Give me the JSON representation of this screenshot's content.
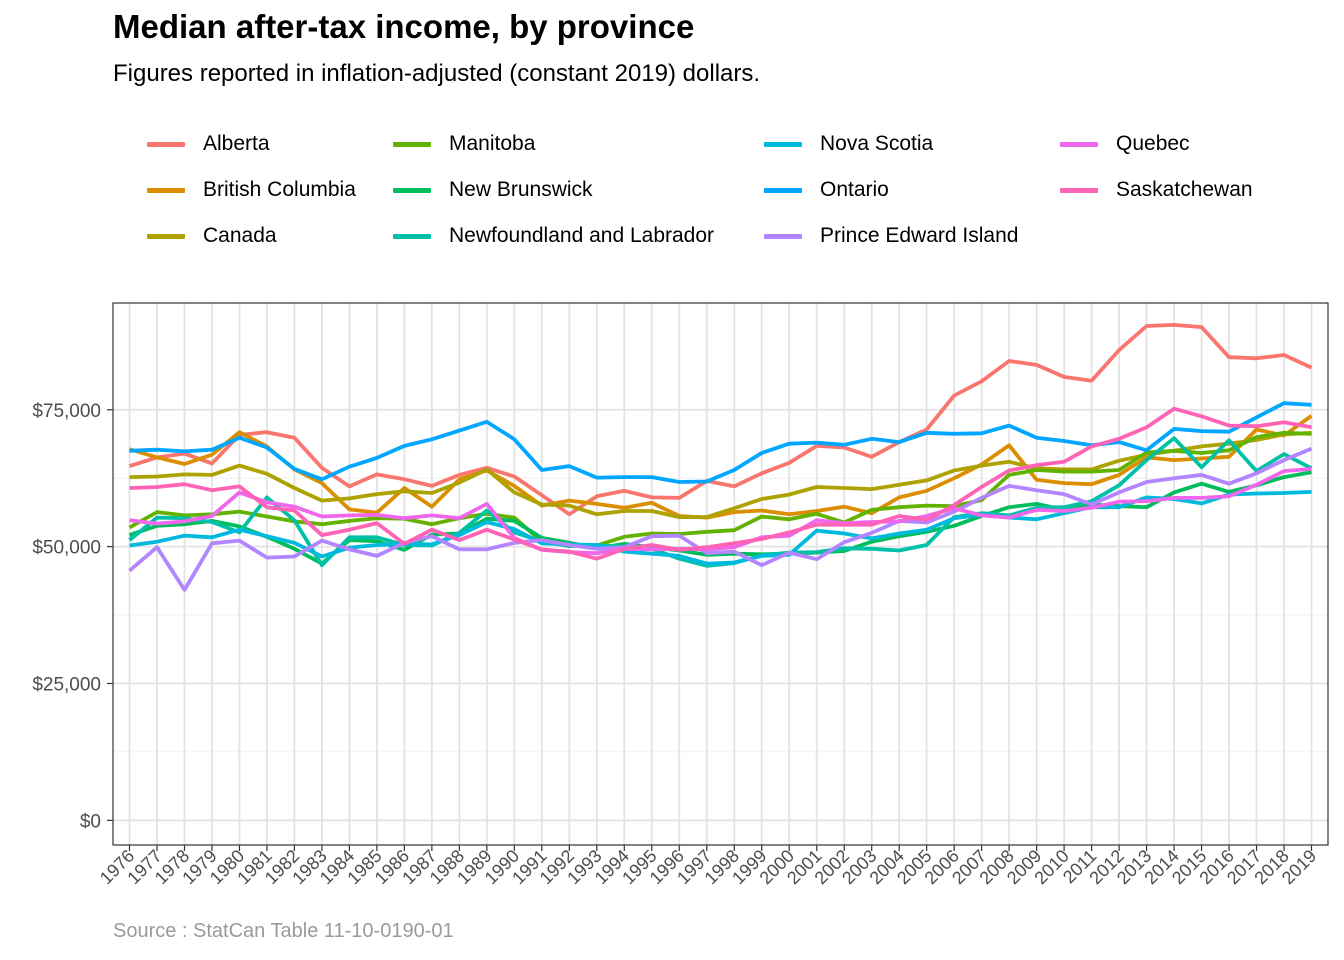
{
  "title": "Median after-tax income, by province",
  "subtitle": "Figures reported in inflation-adjusted (constant 2019) dollars.",
  "caption": "Source : StatCan Table 11-10-0190-01",
  "chart_data": {
    "type": "line",
    "title": "Median after-tax income, by province",
    "subtitle": "Figures reported in inflation-adjusted (constant 2019) dollars.",
    "xlabel": "",
    "ylabel": "",
    "ylim": [
      -4500,
      94500
    ],
    "y_ticks": [
      0,
      25000,
      50000,
      75000
    ],
    "y_tick_labels": [
      "$0",
      "$25,000",
      "$50,000",
      "$75,000"
    ],
    "grid": true,
    "legend_position": "top",
    "x": [
      1976,
      1977,
      1978,
      1979,
      1980,
      1981,
      1982,
      1983,
      1984,
      1985,
      1986,
      1987,
      1988,
      1989,
      1990,
      1991,
      1992,
      1993,
      1994,
      1995,
      1996,
      1997,
      1998,
      1999,
      2000,
      2001,
      2002,
      2003,
      2004,
      2005,
      2006,
      2007,
      2008,
      2009,
      2010,
      2011,
      2012,
      2013,
      2014,
      2015,
      2016,
      2017,
      2018,
      2019
    ],
    "series": [
      {
        "name": "Alberta",
        "color": "#F8766D",
        "values": [
          64700,
          66300,
          67000,
          65200,
          70400,
          70900,
          69900,
          64400,
          61000,
          63200,
          62300,
          61100,
          63100,
          64400,
          62800,
          59400,
          55900,
          59200,
          60200,
          59000,
          58900,
          62000,
          61000,
          63400,
          65300,
          68400,
          68100,
          66400,
          69100,
          71400,
          77600,
          80200,
          83900,
          83200,
          81000,
          80300,
          85900,
          90300,
          90500,
          90100,
          84600,
          84400,
          85000,
          82700
        ]
      },
      {
        "name": "British Columbia",
        "color": "#DB8E00",
        "values": [
          67800,
          66300,
          65100,
          66800,
          70900,
          68300,
          64100,
          61600,
          56800,
          56200,
          60700,
          57300,
          62300,
          63900,
          61100,
          57500,
          58400,
          57800,
          57100,
          58000,
          55600,
          55300,
          56300,
          56600,
          55900,
          56500,
          57300,
          56100,
          59000,
          60200,
          62500,
          65000,
          68500,
          62200,
          61600,
          61400,
          63100,
          66300,
          65800,
          66100,
          66400,
          71400,
          70300,
          73900
        ]
      },
      {
        "name": "Canada",
        "color": "#AEA200",
        "values": [
          62700,
          62800,
          63200,
          63100,
          64800,
          63300,
          60700,
          58400,
          58800,
          59600,
          60100,
          59800,
          61700,
          64100,
          59900,
          57700,
          57500,
          55900,
          56500,
          56500,
          55400,
          55400,
          57000,
          58700,
          59500,
          60900,
          60700,
          60500,
          61300,
          62100,
          63900,
          64800,
          65500,
          64300,
          64100,
          64100,
          65700,
          66800,
          67500,
          68300,
          68800,
          69500,
          70500,
          70800
        ]
      },
      {
        "name": "Manitoba",
        "color": "#64B200",
        "values": [
          53500,
          56300,
          55700,
          55900,
          56400,
          55500,
          54600,
          54100,
          54700,
          55200,
          55100,
          54100,
          55200,
          56000,
          55300,
          50900,
          50200,
          50200,
          51800,
          52400,
          52300,
          52700,
          53000,
          55500,
          55000,
          56000,
          54400,
          56700,
          57200,
          57500,
          57400,
          58500,
          63100,
          64000,
          63700,
          63700,
          64000,
          67200,
          67500,
          67100,
          67600,
          70000,
          70800,
          70600
        ]
      },
      {
        "name": "New Brunswick",
        "color": "#00BD5C",
        "values": [
          52100,
          53800,
          54100,
          54700,
          53700,
          51800,
          49600,
          46900,
          51200,
          51000,
          49400,
          52200,
          52400,
          55100,
          54700,
          51600,
          50700,
          49700,
          50500,
          49900,
          49300,
          48500,
          48700,
          48600,
          48700,
          48900,
          49200,
          50900,
          51900,
          52700,
          53800,
          55600,
          57200,
          57800,
          56700,
          57700,
          57400,
          57200,
          59900,
          61500,
          60000,
          61200,
          62700,
          63600
        ]
      },
      {
        "name": "Newfoundland and Labrador",
        "color": "#00C1A7",
        "values": [
          51200,
          55300,
          55200,
          54500,
          52600,
          59000,
          54800,
          46600,
          51700,
          51700,
          50300,
          50200,
          52500,
          56600,
          52600,
          51000,
          50100,
          50300,
          49900,
          49600,
          47800,
          46500,
          47000,
          48400,
          48900,
          49000,
          49700,
          49600,
          49300,
          50300,
          55400,
          56100,
          55700,
          57100,
          57200,
          58300,
          61200,
          65800,
          69800,
          64500,
          69400,
          63800,
          66900,
          64300
        ]
      },
      {
        "name": "Nova Scotia",
        "color": "#00BADE",
        "values": [
          50200,
          50900,
          52000,
          51700,
          53100,
          51900,
          50700,
          48200,
          49800,
          50300,
          50500,
          50400,
          52100,
          54500,
          53200,
          50600,
          50400,
          50300,
          49100,
          48700,
          48300,
          46900,
          47100,
          48300,
          48500,
          52900,
          52400,
          51500,
          52400,
          53100,
          55200,
          55800,
          55300,
          55000,
          56100,
          57200,
          57200,
          59000,
          58700,
          57900,
          59500,
          59700,
          59800,
          60000
        ]
      },
      {
        "name": "Ontario",
        "color": "#00A6FF",
        "values": [
          67500,
          67700,
          67400,
          67700,
          69900,
          68100,
          64200,
          62300,
          64600,
          66200,
          68400,
          69600,
          71200,
          72800,
          69600,
          64000,
          64700,
          62600,
          62700,
          62700,
          61800,
          61900,
          64000,
          67100,
          68800,
          69000,
          68600,
          69700,
          69100,
          70800,
          70600,
          70700,
          72100,
          69900,
          69300,
          68500,
          69100,
          67600,
          71500,
          71100,
          71000,
          73600,
          76200,
          75900
        ]
      },
      {
        "name": "Prince Edward Island",
        "color": "#B385FF",
        "values": [
          45600,
          49900,
          42100,
          50600,
          51100,
          48000,
          48200,
          51100,
          49500,
          48300,
          50700,
          51900,
          49500,
          49500,
          50700,
          51200,
          50300,
          49600,
          49900,
          51900,
          52000,
          48800,
          49100,
          46600,
          48900,
          47700,
          50800,
          52500,
          54700,
          54400,
          56400,
          58900,
          61100,
          60300,
          59600,
          57700,
          59900,
          61800,
          62500,
          63100,
          61500,
          63400,
          65800,
          67900
        ]
      },
      {
        "name": "Quebec",
        "color": "#EF67EB",
        "values": [
          54800,
          54200,
          54600,
          55600,
          59900,
          58100,
          57300,
          55500,
          55700,
          55800,
          55200,
          55700,
          55200,
          57800,
          51600,
          49400,
          49000,
          48800,
          49600,
          49500,
          49600,
          49500,
          49900,
          51700,
          52000,
          54800,
          54300,
          54500,
          54600,
          55600,
          57000,
          55700,
          55300,
          56700,
          56500,
          57100,
          58200,
          58300,
          58900,
          58900,
          59200,
          61300,
          63800,
          64200
        ]
      },
      {
        "name": "Saskatchewan",
        "color": "#FF63B6",
        "values": [
          60700,
          60900,
          61400,
          60300,
          61000,
          57200,
          56600,
          52100,
          53100,
          54300,
          50500,
          53100,
          51200,
          53100,
          51300,
          49500,
          49100,
          47800,
          49600,
          50300,
          49400,
          49900,
          50600,
          51400,
          52600,
          54000,
          54000,
          54000,
          55600,
          54900,
          57600,
          60900,
          63900,
          64900,
          65500,
          68300,
          69700,
          71800,
          75200,
          73800,
          72100,
          72000,
          72700,
          71800
        ]
      }
    ]
  }
}
